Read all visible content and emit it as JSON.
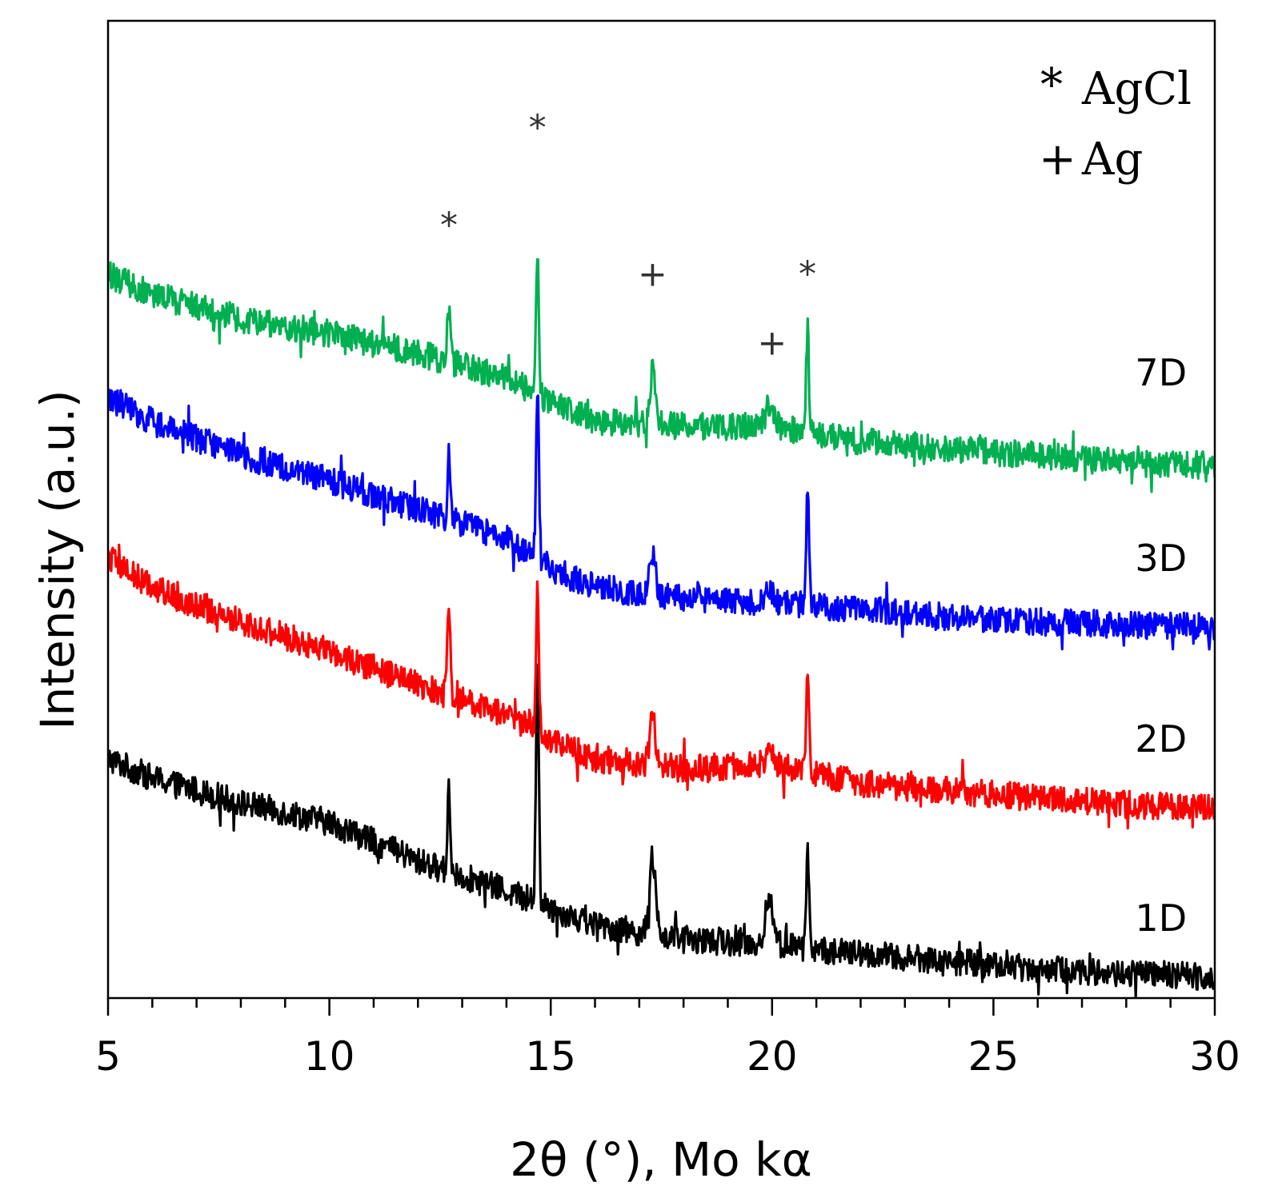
{
  "chart_data": {
    "type": "line",
    "title": "",
    "xlabel": "2θ (°), Mo kα",
    "ylabel": "Intensity (a.u.)",
    "xlim": [
      5,
      30
    ],
    "ylim": [
      0,
      10
    ],
    "x_ticks": [
      "5",
      "10",
      "15",
      "20",
      "25",
      "30"
    ],
    "y_ticks": [],
    "legend": {
      "placement": "top-right",
      "entries": [
        {
          "symbol": "*",
          "label": "AgCl"
        },
        {
          "symbol": "+",
          "label": "Ag"
        }
      ]
    },
    "peak_markers": [
      {
        "symbol": "*",
        "x": 12.7,
        "y": 7.9
      },
      {
        "symbol": "*",
        "x": 14.7,
        "y": 8.9
      },
      {
        "symbol": "+",
        "x": 17.3,
        "y": 7.4
      },
      {
        "symbol": "+",
        "x": 20.0,
        "y": 6.7
      },
      {
        "symbol": "*",
        "x": 20.8,
        "y": 7.4
      }
    ],
    "peaks": [
      {
        "x": 12.7,
        "phase": "AgCl"
      },
      {
        "x": 14.7,
        "phase": "AgCl"
      },
      {
        "x": 17.3,
        "phase": "Ag"
      },
      {
        "x": 19.95,
        "phase": "Ag"
      },
      {
        "x": 20.8,
        "phase": "AgCl"
      }
    ],
    "series": [
      {
        "name": "1D",
        "color": "#000000",
        "noise": 0.14,
        "x": [
          5,
          6,
          8,
          10,
          12,
          14,
          15,
          16,
          18,
          20,
          22,
          24,
          26,
          28,
          30
        ],
        "baseline": [
          2.45,
          2.25,
          2.0,
          1.8,
          1.4,
          1.1,
          0.92,
          0.75,
          0.6,
          0.55,
          0.45,
          0.38,
          0.3,
          0.25,
          0.22
        ],
        "peak_heights": [
          0.85,
          2.4,
          0.8,
          0.45,
          1.0
        ],
        "label_y": 0.82
      },
      {
        "name": "2D",
        "color": "#ff0000",
        "noise": 0.14,
        "x": [
          5,
          6,
          8,
          10,
          12,
          14,
          15,
          16,
          18,
          20,
          22,
          24,
          26,
          28,
          30
        ],
        "baseline": [
          4.5,
          4.2,
          3.85,
          3.55,
          3.2,
          2.9,
          2.65,
          2.45,
          2.35,
          2.4,
          2.2,
          2.12,
          2.05,
          1.98,
          1.95
        ],
        "peak_heights": [
          1.0,
          1.5,
          0.5,
          0.15,
          1.0
        ],
        "label_y": 2.65
      },
      {
        "name": "3D",
        "color": "#0000ff",
        "noise": 0.14,
        "x": [
          5,
          6,
          8,
          10,
          12,
          14,
          15,
          16,
          18,
          20,
          22,
          24,
          26,
          28,
          30
        ],
        "baseline": [
          6.15,
          5.9,
          5.55,
          5.3,
          5.0,
          4.7,
          4.4,
          4.2,
          4.1,
          4.05,
          3.98,
          3.9,
          3.85,
          3.82,
          3.8
        ],
        "peak_heights": [
          0.7,
          1.8,
          0.4,
          0.15,
          1.2
        ],
        "label_y": 4.5
      },
      {
        "name": "7D",
        "color": "#00b050",
        "noise": 0.14,
        "x": [
          5,
          6,
          8,
          10,
          12,
          14,
          15,
          16,
          18,
          20,
          22,
          24,
          26,
          28,
          30
        ],
        "baseline": [
          7.4,
          7.2,
          6.95,
          6.8,
          6.6,
          6.35,
          6.1,
          5.9,
          5.85,
          5.85,
          5.7,
          5.62,
          5.55,
          5.48,
          5.45
        ],
        "peak_heights": [
          0.75,
          1.5,
          0.55,
          0.25,
          1.05
        ],
        "label_y": 6.4
      }
    ]
  }
}
